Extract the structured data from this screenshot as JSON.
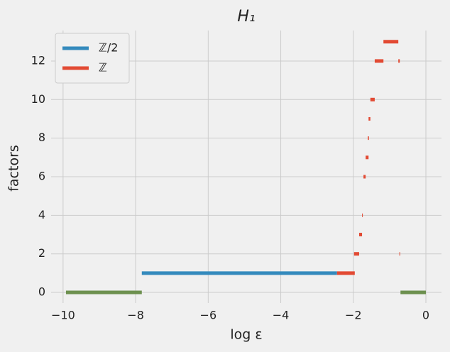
{
  "chart_data": {
    "type": "segments",
    "title": "H₁",
    "xlabel": "log ε",
    "ylabel": "factors",
    "xlim": [
      -10.33,
      0.43
    ],
    "ylim": [
      -0.55,
      13.58
    ],
    "xticks": [
      {
        "value": -10,
        "label": "−10"
      },
      {
        "value": -8,
        "label": "−8"
      },
      {
        "value": -6,
        "label": "−6"
      },
      {
        "value": -4,
        "label": "−4"
      },
      {
        "value": -2,
        "label": "−2"
      },
      0
    ],
    "yticks": [
      0,
      2,
      4,
      6,
      8,
      10,
      12
    ],
    "grid": true,
    "legend": "upper left",
    "series": [
      {
        "name": "ℤ/2",
        "color": "#348abd",
        "y": [
          1
        ],
        "x_start": [
          -7.83
        ],
        "x_end": [
          -2.45
        ]
      },
      {
        "name": "ℤ",
        "color": "#e24a33",
        "y": [
          1,
          2,
          2,
          3,
          4,
          6,
          7,
          8,
          9,
          10,
          12,
          12,
          13
        ],
        "x_start": [
          -2.45,
          -1.98,
          -0.73,
          -1.84,
          -1.76,
          -1.72,
          -1.66,
          -1.6,
          -1.58,
          -1.53,
          -1.41,
          -0.76,
          -1.17
        ],
        "x_end": [
          -1.96,
          -1.84,
          -0.71,
          -1.76,
          -1.74,
          -1.66,
          -1.58,
          -1.57,
          -1.53,
          -1.41,
          -1.17,
          -0.72,
          -0.76
        ]
      },
      {
        "color": "#6d904f",
        "y": [
          0,
          0
        ],
        "x_start": [
          -9.92,
          -0.7
        ],
        "x_end": [
          -7.83,
          0
        ]
      }
    ]
  }
}
